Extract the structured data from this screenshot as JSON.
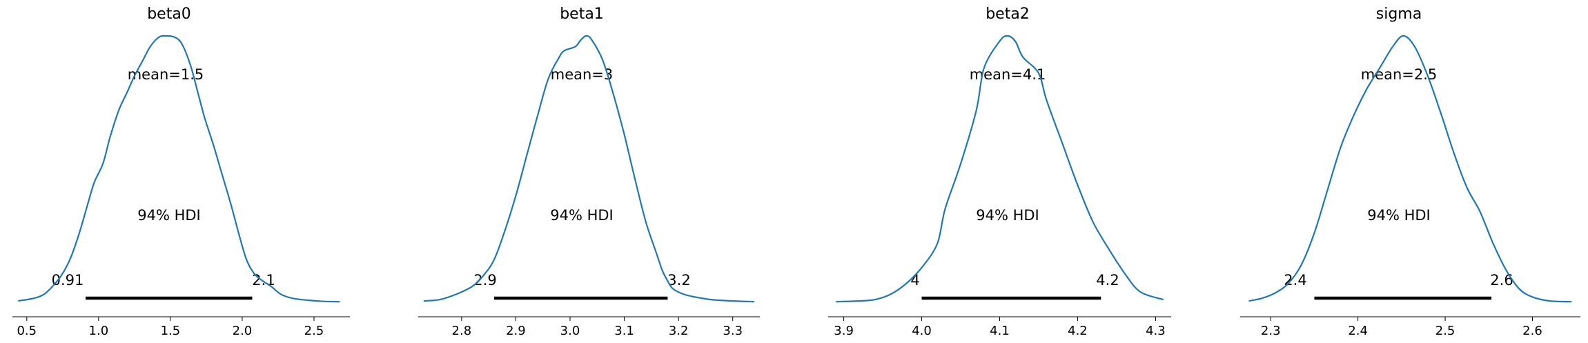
{
  "chart_data": [
    {
      "type": "density",
      "title": "beta0",
      "xlim": [
        0.4,
        2.75
      ],
      "ticks": [
        0.5,
        1.0,
        1.5,
        2.0,
        2.5
      ],
      "tick_labels": [
        "0.5",
        "1.0",
        "1.5",
        "2.0",
        "2.5"
      ],
      "mean_label": "mean=1.5",
      "hdi_label": "94% HDI",
      "hdi": [
        0.91,
        2.07
      ],
      "hdi_low_label": "0.91",
      "hdi_high_label": "2.1",
      "density_x": [
        0.44,
        0.55,
        0.62,
        0.68,
        0.74,
        0.8,
        0.86,
        0.92,
        0.97,
        1.03,
        1.08,
        1.14,
        1.2,
        1.25,
        1.31,
        1.36,
        1.42,
        1.47,
        1.53,
        1.58,
        1.64,
        1.69,
        1.74,
        1.8,
        1.86,
        1.92,
        1.98,
        2.03,
        2.08,
        2.13,
        2.2,
        2.27,
        2.35,
        2.45,
        2.58,
        2.68
      ],
      "density_y": [
        0.005,
        0.015,
        0.03,
        0.06,
        0.1,
        0.16,
        0.25,
        0.36,
        0.45,
        0.52,
        0.62,
        0.72,
        0.79,
        0.85,
        0.91,
        0.96,
        0.995,
        1.0,
        0.995,
        0.97,
        0.89,
        0.79,
        0.69,
        0.59,
        0.48,
        0.37,
        0.25,
        0.16,
        0.11,
        0.085,
        0.06,
        0.03,
        0.015,
        0.008,
        0.003,
        0.002
      ]
    },
    {
      "type": "density",
      "title": "beta1",
      "xlim": [
        2.72,
        3.35
      ],
      "ticks": [
        2.8,
        2.9,
        3.0,
        3.1,
        3.2,
        3.3
      ],
      "tick_labels": [
        "2.8",
        "2.9",
        "3.0",
        "3.1",
        "3.2",
        "3.3"
      ],
      "mean_label": "mean=3",
      "hdi_label": "94% HDI",
      "hdi": [
        2.86,
        3.18
      ],
      "hdi_low_label": "2.9",
      "hdi_high_label": "3.2",
      "density_x": [
        2.73,
        2.76,
        2.79,
        2.82,
        2.84,
        2.86,
        2.88,
        2.9,
        2.92,
        2.94,
        2.96,
        2.98,
        2.99,
        3.01,
        3.02,
        3.03,
        3.04,
        3.06,
        3.08,
        3.1,
        3.12,
        3.14,
        3.16,
        3.17,
        3.18,
        3.19,
        3.21,
        3.23,
        3.26,
        3.3,
        3.34
      ],
      "density_y": [
        0.005,
        0.01,
        0.03,
        0.06,
        0.1,
        0.16,
        0.27,
        0.4,
        0.55,
        0.7,
        0.84,
        0.92,
        0.945,
        0.96,
        0.985,
        1.0,
        0.985,
        0.91,
        0.78,
        0.63,
        0.46,
        0.3,
        0.18,
        0.12,
        0.08,
        0.05,
        0.03,
        0.02,
        0.01,
        0.005,
        0.002
      ]
    },
    {
      "type": "density",
      "title": "beta2",
      "xlim": [
        3.88,
        4.32
      ],
      "ticks": [
        3.9,
        4.0,
        4.1,
        4.2,
        4.3
      ],
      "tick_labels": [
        "3.9",
        "4.0",
        "4.1",
        "4.2",
        "4.3"
      ],
      "mean_label": "mean=4.1",
      "hdi_label": "94% HDI",
      "hdi": [
        4.0,
        4.23
      ],
      "hdi_low_label": "4",
      "hdi_high_label": "4.2",
      "density_x": [
        3.89,
        3.92,
        3.94,
        3.96,
        3.98,
        4.0,
        4.02,
        4.03,
        4.05,
        4.07,
        4.08,
        4.1,
        4.11,
        4.12,
        4.13,
        4.15,
        4.16,
        4.18,
        4.2,
        4.22,
        4.24,
        4.26,
        4.28,
        4.31
      ],
      "density_y": [
        0.002,
        0.005,
        0.01,
        0.03,
        0.07,
        0.13,
        0.22,
        0.35,
        0.52,
        0.72,
        0.88,
        0.98,
        1.0,
        0.98,
        0.92,
        0.86,
        0.76,
        0.6,
        0.44,
        0.3,
        0.2,
        0.11,
        0.04,
        0.01
      ]
    },
    {
      "type": "density",
      "title": "sigma",
      "xlim": [
        2.265,
        2.655
      ],
      "ticks": [
        2.3,
        2.4,
        2.5,
        2.6
      ],
      "tick_labels": [
        "2.3",
        "2.4",
        "2.5",
        "2.6"
      ],
      "mean_label": "mean=2.5",
      "hdi_label": "94% HDI",
      "hdi": [
        2.35,
        2.553
      ],
      "hdi_low_label": "2.4",
      "hdi_high_label": "2.6",
      "density_x": [
        2.275,
        2.29,
        2.305,
        2.32,
        2.335,
        2.35,
        2.365,
        2.38,
        2.395,
        2.41,
        2.425,
        2.44,
        2.452,
        2.465,
        2.48,
        2.495,
        2.51,
        2.525,
        2.54,
        2.555,
        2.57,
        2.585,
        2.6,
        2.62,
        2.645
      ],
      "density_y": [
        0.005,
        0.015,
        0.035,
        0.07,
        0.14,
        0.26,
        0.42,
        0.58,
        0.7,
        0.8,
        0.88,
        0.96,
        1.0,
        0.96,
        0.85,
        0.71,
        0.56,
        0.43,
        0.34,
        0.22,
        0.12,
        0.05,
        0.02,
        0.005,
        0.002
      ]
    }
  ]
}
